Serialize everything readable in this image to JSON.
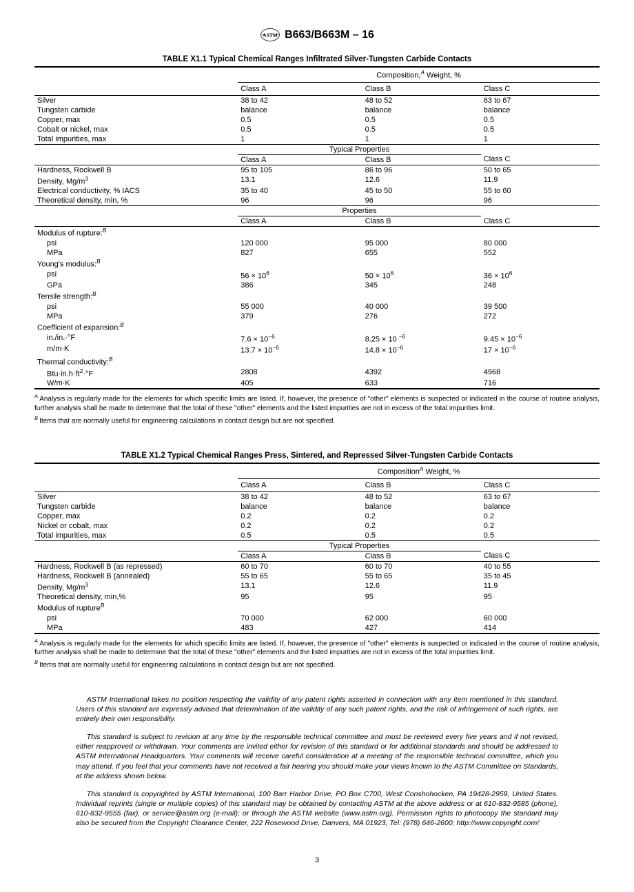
{
  "header": {
    "designation": "B663/B663M – 16"
  },
  "table1": {
    "title": "TABLE X1.1 Typical Chemical Ranges Infiltrated Silver-Tungsten Carbide Contacts",
    "composition_label": "Composition,",
    "composition_suffix": " Weight, %",
    "classA": "Class A",
    "classB": "Class B",
    "classC": "Class C",
    "section_typical": "Typical Properties",
    "section_properties": "Properties",
    "rows_comp": [
      {
        "label": "Silver",
        "a": "38 to 42",
        "b": "48 to 52",
        "c": "63 to 67"
      },
      {
        "label": "Tungsten carbide",
        "a": "balance",
        "b": "balance",
        "c": "balance"
      },
      {
        "label": "Copper, max",
        "a": "0.5",
        "b": "0.5",
        "c": "0.5"
      },
      {
        "label": "Cobalt or nickel, max",
        "a": "0.5",
        "b": "0.5",
        "c": "0.5"
      },
      {
        "label": "Total impurities, max",
        "a": "1",
        "b": "1",
        "c": "1"
      }
    ],
    "rows_typical": [
      {
        "label": "Hardness, Rockwell B",
        "a": "95 to 105",
        "b": "86 to 96",
        "c": "50 to 65"
      },
      {
        "label": "Density, Mg/m",
        "sup": "3",
        "a": "13.1",
        "b": "12.6",
        "c": "11.9"
      },
      {
        "label": "Electrical conductivity, % IACS",
        "a": "35 to 40",
        "b": "45 to 50",
        "c": "55 to 60"
      },
      {
        "label": "Theoretical density, min, %",
        "a": "96",
        "b": "96",
        "c": "96"
      }
    ],
    "rows_props": [
      {
        "label": "Modulus of rupture:",
        "supB": true
      },
      {
        "label": "psi",
        "indent": true,
        "a": "120 000",
        "b": "95 000",
        "c": "80 000"
      },
      {
        "label": "MPa",
        "indent": true,
        "a": "827",
        "b": "655",
        "c": "552"
      },
      {
        "label": "Young's modulus:",
        "supB": true
      },
      {
        "label": "psi",
        "indent": true,
        "a": "56 × 10",
        "asup": "6",
        "b": "50 × 10",
        "bsup": "6",
        "c": "36 × 10",
        "csup": "6"
      },
      {
        "label": "GPa",
        "indent": true,
        "a": "386",
        "b": "345",
        "c": "248"
      },
      {
        "label": "Tensile strength:",
        "supB": true
      },
      {
        "label": "psi",
        "indent": true,
        "a": "55 000",
        "b": "40 000",
        "c": "39 500"
      },
      {
        "label": "MPa",
        "indent": true,
        "a": "379",
        "b": "276",
        "c": "272"
      },
      {
        "label": "Coefficient of expansion:",
        "supB": true
      },
      {
        "label": "in./in.·°F",
        "indent": true,
        "a": "7.6 × 10",
        "asup": "−6",
        "b": "8.25 × 10 ",
        "bsup": "−6",
        "c": "9.45 × 10",
        "csup": "−6"
      },
      {
        "label": "m/m·K",
        "indent": true,
        "a": "13.7 × 10",
        "asup": "−6",
        "b": "14.8 × 10",
        "bsup": "−6",
        "c": "17 × 10",
        "csup": "−6"
      },
      {
        "label": "Thermal conductivity:",
        "supB": true
      },
      {
        "label": "Btu·in.h·ft",
        "sup": "2",
        "label2": "·°F",
        "indent": true,
        "a": "2808",
        "b": "4392",
        "c": "4968"
      },
      {
        "label": "W/m·K",
        "indent": true,
        "a": "405",
        "b": "633",
        "c": "716"
      }
    ],
    "footnoteA": "Analysis is regularly made for the elements for which specific limits are listed. If, however, the presence of \"other\" elements is suspected or indicated in the course of routine analysis, further analysis shall be made to determine that the total of these \"other\" elements and the listed impurities are not in excess of the total impurities limit.",
    "footnoteB": "Items that are normally useful for engineering calculations in contact design but are not specified."
  },
  "table2": {
    "title": "TABLE X1.2 Typical Chemical Ranges Press, Sintered, and Repressed Silver-Tungsten Carbide Contacts",
    "composition_label": "Composition",
    "composition_suffix": " Weight, %",
    "classA": "Class A",
    "classB": "Class B",
    "classC": "Class C",
    "section_typical": "Typical Properties",
    "rows_comp": [
      {
        "label": "Silver",
        "a": "38 to 42",
        "b": "48 to 52",
        "c": "63 to 67"
      },
      {
        "label": "Tungsten carbide",
        "a": "balance",
        "b": "balance",
        "c": "balance"
      },
      {
        "label": "Copper, max",
        "a": "0.2",
        "b": "0.2",
        "c": "0.2"
      },
      {
        "label": "Nickel or cobalt, max",
        "a": "0.2",
        "b": "0.2",
        "c": "0.2"
      },
      {
        "label": "Total impurities, max",
        "a": "0.5",
        "b": "0.5",
        "c": "0.5"
      }
    ],
    "rows_typical": [
      {
        "label": "Hardness, Rockwell B (as repressed)",
        "a": "60 to 70",
        "b": "60 to 70",
        "c": "40 to 55"
      },
      {
        "label": "Hardness, Rockwell B (annealed)",
        "a": "55 to 65",
        "b": "55 to 65",
        "c": "35 to 45"
      },
      {
        "label": "Density, Mg/m",
        "sup": "3",
        "a": "13.1",
        "b": "12.6",
        "c": "11.9"
      },
      {
        "label": "Theoretical density, min,%",
        "a": "95",
        "b": "95",
        "c": "95"
      },
      {
        "label": "Modulus of rupture",
        "supB": true
      },
      {
        "label": "psi",
        "indent": true,
        "a": "70 000",
        "b": "62 000",
        "c": "60 000"
      },
      {
        "label": "MPa",
        "indent": true,
        "a": "483",
        "b": "427",
        "c": "414"
      }
    ],
    "footnoteA": "Analysis is regularly made for the elements for which specific limits are listed. If, however, the presence of \"other\" elements is suspected or indicated in the course of routine analysis, further analysis shall be made to determine that the total of these \"other\" elements and the listed impurities are not in excess of the total impurities limit.",
    "footnoteB": "Items that are normally useful for engineering calculations in contact design but are not specified."
  },
  "paragraphs": [
    "ASTM International takes no position respecting the validity of any patent rights asserted in connection with any item mentioned in this standard. Users of this standard are expressly advised that determination of the validity of any such patent rights, and the risk of infringement of such rights, are entirely their own responsibility.",
    "This standard is subject to revision at any time by the responsible technical committee and must be reviewed every five years and if not revised, either reapproved or withdrawn. Your comments are invited either for revision of this standard or for additional standards and should be addressed to ASTM International Headquarters. Your comments will receive careful consideration at a meeting of the responsible technical committee, which you may attend. If you feel that your comments have not received a fair hearing you should make your views known to the ASTM Committee on Standards, at the address shown below.",
    "This standard is copyrighted by ASTM International, 100 Barr Harbor Drive, PO Box C700, West Conshohocken, PA 19428-2959, United States. Individual reprints (single or multiple copies) of this standard may be obtained by contacting ASTM at the above address or at 610-832-9585 (phone), 610-832-9555 (fax), or service@astm.org (e-mail); or through the ASTM website (www.astm.org). Permission rights to photocopy the standard may also be secured from the Copyright Clearance Center, 222 Rosewood Drive, Danvers, MA 01923, Tel: (978) 646-2600; http://www.copyright.com/"
  ],
  "page": "3"
}
